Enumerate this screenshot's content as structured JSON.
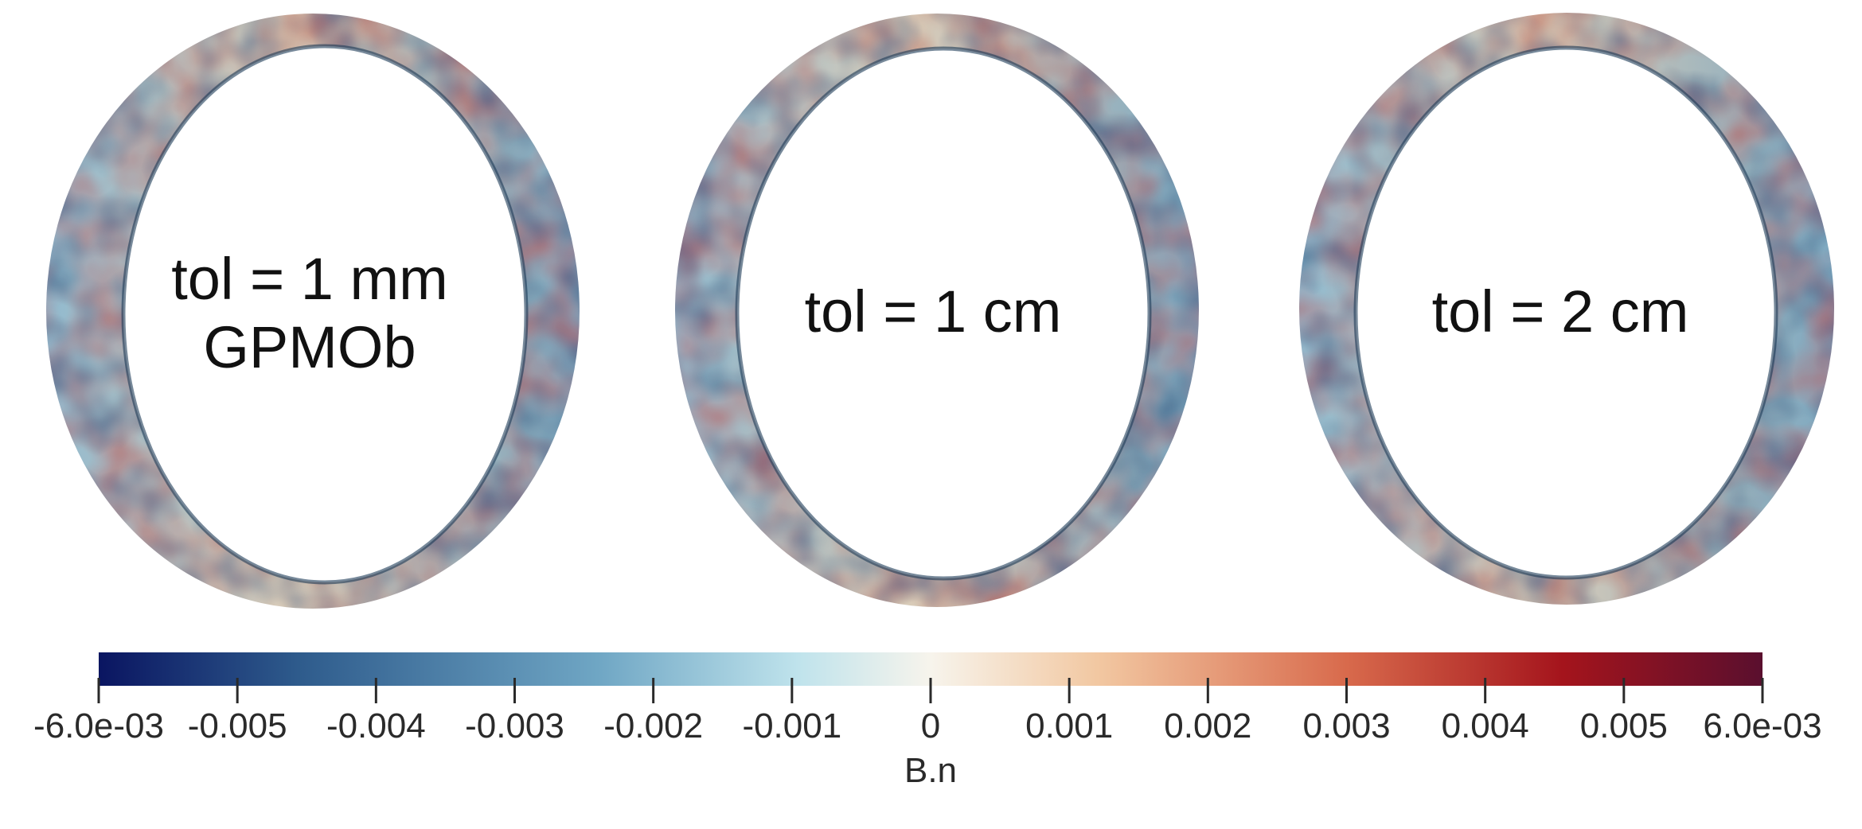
{
  "panels": [
    {
      "label_lines": [
        "tol = 1 mm",
        "GPMOb"
      ]
    },
    {
      "label_lines": [
        "tol = 1 cm"
      ]
    },
    {
      "label_lines": [
        "tol = 2 cm"
      ]
    }
  ],
  "colorbar": {
    "title": "B.n",
    "range": [
      -0.006,
      0.006
    ],
    "ticks": [
      {
        "value": -0.006,
        "label": "-6.0e-03"
      },
      {
        "value": -0.005,
        "label": "-0.005"
      },
      {
        "value": -0.004,
        "label": "-0.004"
      },
      {
        "value": -0.003,
        "label": "-0.003"
      },
      {
        "value": -0.002,
        "label": "-0.002"
      },
      {
        "value": -0.001,
        "label": "-0.001"
      },
      {
        "value": 0,
        "label": "0"
      },
      {
        "value": 0.001,
        "label": "0.001"
      },
      {
        "value": 0.002,
        "label": "0.002"
      },
      {
        "value": 0.003,
        "label": "0.003"
      },
      {
        "value": 0.004,
        "label": "0.004"
      },
      {
        "value": 0.005,
        "label": "0.005"
      },
      {
        "value": 0.006,
        "label": "6.0e-03"
      }
    ],
    "colormap": [
      "#0a1561",
      "#2e5b8c",
      "#6fa6c4",
      "#bfe3ec",
      "#f7f4ec",
      "#f2c8a2",
      "#d86a4c",
      "#a4141c",
      "#5a0f2e"
    ]
  }
}
